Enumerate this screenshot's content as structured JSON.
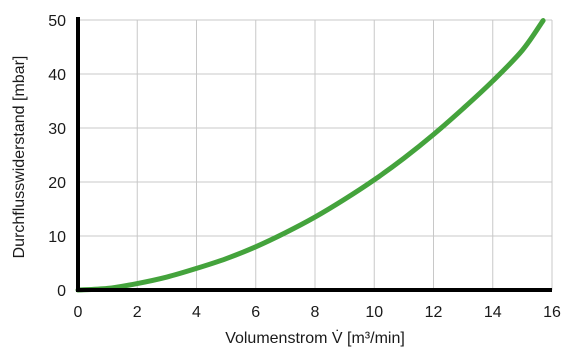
{
  "chart_data": {
    "type": "line",
    "xlabel": "Volumenstrom V̇ [m³/min]",
    "ylabel": "Durchflusswiderstand [mbar]",
    "xlim": [
      0,
      16
    ],
    "ylim": [
      0,
      50
    ],
    "xticks": [
      0,
      2,
      4,
      6,
      8,
      10,
      12,
      14,
      16
    ],
    "yticks": [
      0,
      10,
      20,
      30,
      40,
      50
    ],
    "grid": true,
    "series": [
      {
        "color": "#44a33c",
        "x": [
          0,
          1,
          2,
          3,
          4,
          5,
          6,
          7,
          8,
          9,
          10,
          11,
          12,
          13,
          14,
          15,
          15.7
        ],
        "y": [
          0,
          0.3,
          1.2,
          2.4,
          4.0,
          5.8,
          8.0,
          10.6,
          13.5,
          16.8,
          20.4,
          24.4,
          28.8,
          33.6,
          38.7,
          44.4,
          49.9
        ]
      }
    ]
  }
}
